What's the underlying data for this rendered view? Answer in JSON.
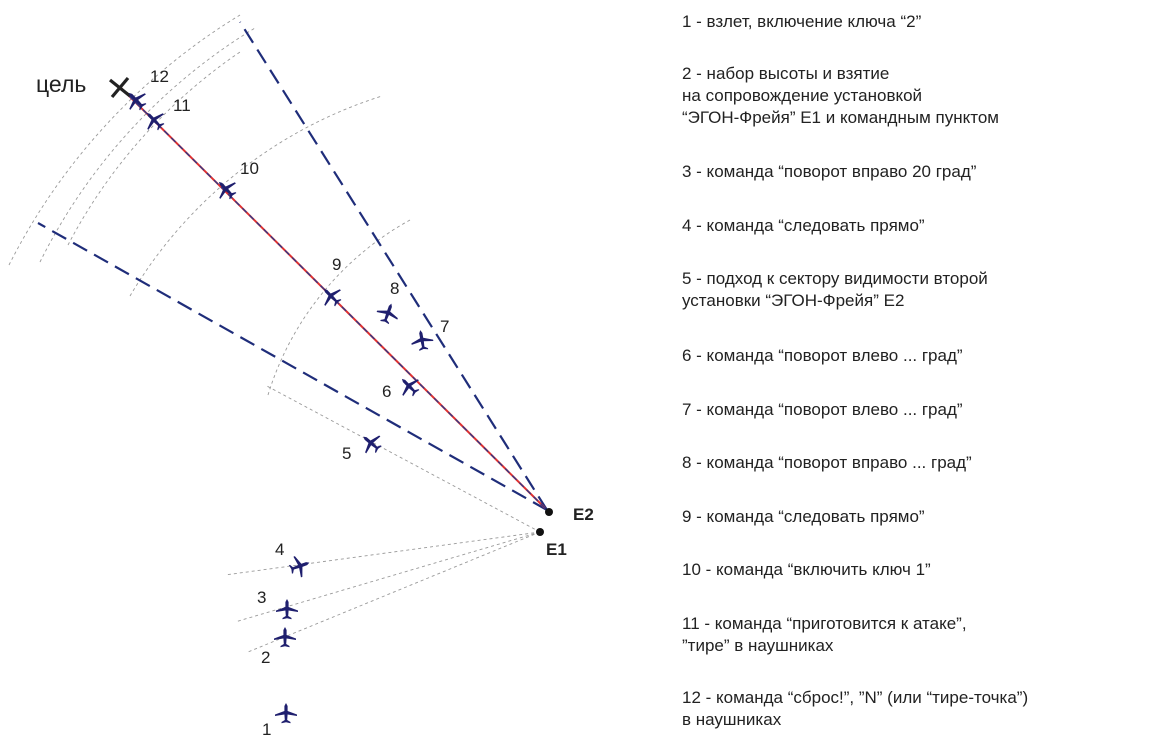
{
  "diagram": {
    "target_label": "цель",
    "stations": [
      {
        "id": "e1",
        "label": "E1"
      },
      {
        "id": "e2",
        "label": "E2"
      }
    ],
    "positions": [
      {
        "n": "1",
        "icon": "aircraft-icon"
      },
      {
        "n": "2",
        "icon": "aircraft-icon"
      },
      {
        "n": "3",
        "icon": "aircraft-icon"
      },
      {
        "n": "4",
        "icon": "aircraft-icon"
      },
      {
        "n": "5",
        "icon": "aircraft-icon"
      },
      {
        "n": "6",
        "icon": "aircraft-icon"
      },
      {
        "n": "7",
        "icon": "aircraft-icon"
      },
      {
        "n": "8",
        "icon": "aircraft-icon"
      },
      {
        "n": "9",
        "icon": "aircraft-icon"
      },
      {
        "n": "10",
        "icon": "aircraft-icon"
      },
      {
        "n": "11",
        "icon": "aircraft-icon"
      },
      {
        "n": "12",
        "icon": "aircraft-icon"
      }
    ],
    "colors": {
      "aircraft": "#1f1f6e",
      "sector_line": "#1f2d7a",
      "flight_path_red": "#e03030",
      "flight_path_blue": "#2a3a8a",
      "range_arc": "#9a9a9a"
    }
  },
  "legend": {
    "items": [
      {
        "text": "1 - взлет, включение ключа “2”"
      },
      {
        "text": "2 - набор высоты и взятие\n     на сопровождение установкой\n     “ЭГОН-Фрейя” Е1 и командным пунктом"
      },
      {
        "text": "3 - команда “поворот вправо 20 град”"
      },
      {
        "text": "4 - команда “следовать прямо”"
      },
      {
        "text": "5 - подход к сектору видимости второй\n     установки “ЭГОН-Фрейя” Е2"
      },
      {
        "text": "6 - команда “поворот влево ... град”"
      },
      {
        "text": "7 - команда “поворот влево ... град”"
      },
      {
        "text": "8 - команда “поворот вправо ... град”"
      },
      {
        "text": "9 - команда “следовать прямо”"
      },
      {
        "text": "10 - команда “включить ключ 1”"
      },
      {
        "text": "11 - команда “приготовится к атаке”,\n      ”тире” в наушниках"
      },
      {
        "text": "12 - команда “сброс!”, ”N” (или “тире-точка”)\n      в наушниках"
      }
    ]
  }
}
